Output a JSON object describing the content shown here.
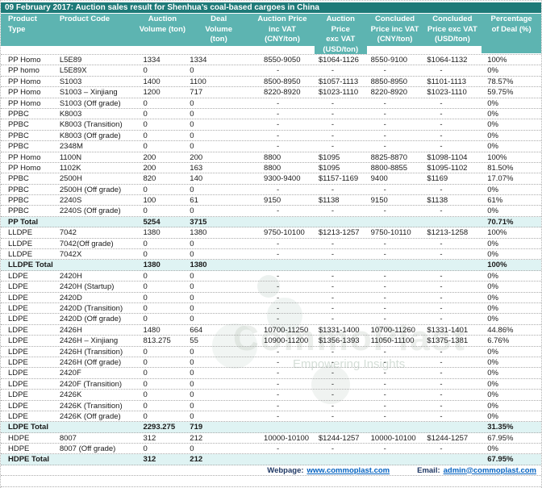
{
  "title": "09 February 2017: Auction sales result for Shenhua’s coal-based cargoes in China",
  "columns": [
    "Product\nType",
    "Product Code",
    "Auction\nVolume (ton)",
    "Deal\nVolume\n(ton)",
    "Auction Price\ninc VAT\n(CNY/ton)",
    "Auction\nPrice\nexc VAT\n(USD/ton)",
    "Concluded\nPrice inc VAT\n(CNY/ton)",
    "Concluded\nPrice exc VAT\n(USD/ton)",
    "Percentage\nof Deal (%)"
  ],
  "rows": [
    {
      "type": "data",
      "cells": [
        "PP Homo",
        "L5E89",
        "1334",
        "1334",
        "8550-9050",
        "$1064-1126",
        "8550-9100",
        "$1064-1132",
        "100%"
      ]
    },
    {
      "type": "data",
      "cells": [
        "PP homo",
        "L5E89X",
        "0",
        "0",
        "-",
        "-",
        "-",
        "-",
        "0%"
      ]
    },
    {
      "type": "data",
      "cells": [
        "PP Homo",
        "S1003",
        "1400",
        "1100",
        "8500-8950",
        "$1057-1113",
        "8850-8950",
        "$1101-1113",
        "78.57%"
      ]
    },
    {
      "type": "data",
      "cells": [
        "PP Homo",
        "S1003 – Xinjiang",
        "1200",
        "717",
        "8220-8920",
        "$1023-1110",
        "8220-8920",
        "$1023-1110",
        "59.75%"
      ]
    },
    {
      "type": "data",
      "cells": [
        "PP Homo",
        "S1003 (Off grade)",
        "0",
        "0",
        "-",
        "-",
        "-",
        "-",
        "0%"
      ]
    },
    {
      "type": "data",
      "cells": [
        "PPBC",
        "K8003",
        "0",
        "0",
        "-",
        "-",
        "-",
        "-",
        "0%"
      ]
    },
    {
      "type": "data",
      "cells": [
        "PPBC",
        "K8003 (Transition)",
        "0",
        "0",
        "-",
        "-",
        "-",
        "-",
        "0%"
      ]
    },
    {
      "type": "data",
      "cells": [
        "PPBC",
        "K8003 (Off grade)",
        "0",
        "0",
        "-",
        "-",
        "-",
        "-",
        "0%"
      ]
    },
    {
      "type": "data",
      "cells": [
        "PPBC",
        "2348M",
        "0",
        "0",
        "-",
        "-",
        "-",
        "-",
        "0%"
      ]
    },
    {
      "type": "data",
      "cells": [
        "PP Homo",
        "1100N",
        "200",
        "200",
        "8800",
        "$1095",
        "8825-8870",
        "$1098-1104",
        "100%"
      ]
    },
    {
      "type": "data",
      "cells": [
        "PP Homo",
        "1102K",
        "200",
        "163",
        "8800",
        "$1095",
        "8800-8855",
        "$1095-1102",
        "81.50%"
      ]
    },
    {
      "type": "data",
      "cells": [
        "PPBC",
        "2500H",
        "820",
        "140",
        "9300-9400",
        "$1157-1169",
        "9400",
        "$1169",
        "17.07%"
      ]
    },
    {
      "type": "data",
      "cells": [
        "PPBC",
        "2500H (Off grade)",
        "0",
        "0",
        "-",
        "-",
        "-",
        "-",
        "0%"
      ]
    },
    {
      "type": "data",
      "cells": [
        "PPBC",
        "2240S",
        "100",
        "61",
        "9150",
        "$1138",
        "9150",
        "$1138",
        "61%"
      ]
    },
    {
      "type": "data",
      "cells": [
        "PPBC",
        "2240S (Off grade)",
        "0",
        "0",
        "-",
        "-",
        "-",
        "-",
        "0%"
      ]
    },
    {
      "type": "total",
      "cells": [
        "PP Total",
        "",
        "5254",
        "3715",
        "",
        "",
        "",
        "",
        "70.71%"
      ]
    },
    {
      "type": "data",
      "cells": [
        "LLDPE",
        "7042",
        "1380",
        "1380",
        "9750-10100",
        "$1213-1257",
        "9750-10110",
        "$1213-1258",
        "100%"
      ]
    },
    {
      "type": "data",
      "cells": [
        "LLDPE",
        "7042(Off grade)",
        "0",
        "0",
        "-",
        "-",
        "-",
        "-",
        "0%"
      ]
    },
    {
      "type": "data",
      "cells": [
        "LLDPE",
        "7042X",
        "0",
        "0",
        "-",
        "-",
        "-",
        "-",
        "0%"
      ]
    },
    {
      "type": "total",
      "cells": [
        "LLDPE Total",
        "",
        "1380",
        "1380",
        "",
        "",
        "",
        "",
        "100%"
      ]
    },
    {
      "type": "data",
      "cells": [
        "LDPE",
        "2420H",
        "0",
        "0",
        "-",
        "-",
        "-",
        "-",
        "0%"
      ]
    },
    {
      "type": "data",
      "cells": [
        "LDPE",
        "2420H (Startup)",
        "0",
        "0",
        "-",
        "-",
        "-",
        "-",
        "0%"
      ]
    },
    {
      "type": "data",
      "cells": [
        "LDPE",
        "2420D",
        "0",
        "0",
        "-",
        "-",
        "-",
        "-",
        "0%"
      ]
    },
    {
      "type": "data",
      "cells": [
        "LDPE",
        "2420D (Transition)",
        "0",
        "0",
        "-",
        "-",
        "-",
        "-",
        "0%"
      ]
    },
    {
      "type": "data",
      "cells": [
        "LDPE",
        "2420D (Off grade)",
        "0",
        "0",
        "-",
        "-",
        "-",
        "-",
        "0%"
      ]
    },
    {
      "type": "data",
      "cells": [
        "LDPE",
        "2426H",
        "1480",
        "664",
        "10700-11250",
        "$1331-1400",
        "10700-11260",
        "$1331-1401",
        "44.86%"
      ]
    },
    {
      "type": "data",
      "cells": [
        "LDPE",
        "2426H – Xinjiang",
        "813.275",
        "55",
        "10900-11200",
        "$1356-1393",
        "11050-11100",
        "$1375-1381",
        "6.76%"
      ]
    },
    {
      "type": "data",
      "cells": [
        "LDPE",
        "2426H (Transition)",
        "0",
        "0",
        "-",
        "-",
        "-",
        "-",
        "0%"
      ]
    },
    {
      "type": "data",
      "cells": [
        "LDPE",
        "2426H (Off grade)",
        "0",
        "0",
        "-",
        "-",
        "-",
        "-",
        "0%"
      ]
    },
    {
      "type": "data",
      "cells": [
        "LDPE",
        "2420F",
        "0",
        "0",
        "-",
        "-",
        "-",
        "-",
        "0%"
      ]
    },
    {
      "type": "data",
      "cells": [
        "LDPE",
        "2420F (Transition)",
        "0",
        "0",
        "-",
        "-",
        "-",
        "-",
        "0%"
      ]
    },
    {
      "type": "data",
      "cells": [
        "LDPE",
        "2426K",
        "0",
        "0",
        "-",
        "-",
        "-",
        "-",
        "0%"
      ]
    },
    {
      "type": "data",
      "cells": [
        "LDPE",
        "2426K (Transition)",
        "0",
        "0",
        "-",
        "-",
        "-",
        "-",
        "0%"
      ]
    },
    {
      "type": "data",
      "cells": [
        "LDPE",
        "2426K (Off grade)",
        "0",
        "0",
        "-",
        "-",
        "-",
        "-",
        "0%"
      ]
    },
    {
      "type": "total",
      "cells": [
        "LDPE Total",
        "",
        "2293.275",
        "719",
        "",
        "",
        "",
        "",
        "31.35%"
      ]
    },
    {
      "type": "data",
      "cells": [
        "HDPE",
        "8007",
        "312",
        "212",
        "10000-10100",
        "$1244-1257",
        "10000-10100",
        "$1244-1257",
        "67.95%"
      ]
    },
    {
      "type": "data",
      "cells": [
        "HDPE",
        "8007 (Off grade)",
        "0",
        "0",
        "-",
        "-",
        "-",
        "-",
        "0%"
      ]
    },
    {
      "type": "total",
      "cells": [
        "HDPE Total",
        "",
        "312",
        "212",
        "",
        "",
        "",
        "",
        "67.95%"
      ]
    }
  ],
  "footer": {
    "webpage_label": "Webpage:",
    "webpage_link": "www.commoplast.com",
    "email_label": "Email:",
    "email_link": "admin@commoplast.com"
  },
  "watermark": {
    "line1": "CommoPlast",
    "line2": "Empowering Insights"
  },
  "colors": {
    "title_bar_bg": "#1e7a78",
    "header_bg": "#5db4b1",
    "total_row_bg": "#dff3f3",
    "link_color": "#0563c1",
    "footer_label_color": "#1f3864",
    "row_text": "#1a1a1a"
  }
}
